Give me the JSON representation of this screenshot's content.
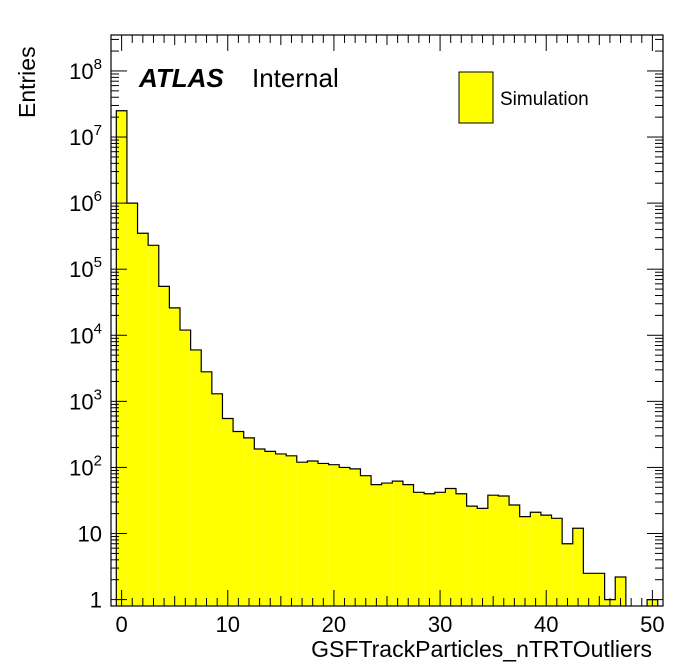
{
  "chart_data": {
    "type": "bar",
    "xlabel": "GSFTrackParticles_nTRTOutliers",
    "ylabel": "Entries",
    "xlim": [
      -1,
      51
    ],
    "ylim": [
      0.8,
      350000000.0
    ],
    "log_y": true,
    "grid": false,
    "fill_color": "#ffff00",
    "line_color": "#000000",
    "atlas_label": "ATLAS",
    "atlas_status": "Internal",
    "legend": {
      "placement": "top-right",
      "entries": [
        "Simulation"
      ]
    },
    "x_tick_labels": [
      "0",
      "10",
      "20",
      "30",
      "40",
      "50"
    ],
    "y_tick_labels": [
      {
        "value": 1,
        "base": "1",
        "exp": ""
      },
      {
        "value": 10,
        "base": "10",
        "exp": ""
      },
      {
        "value": 100,
        "base": "10",
        "exp": "2"
      },
      {
        "value": 1000,
        "base": "10",
        "exp": "3"
      },
      {
        "value": 10000,
        "base": "10",
        "exp": "4"
      },
      {
        "value": 100000,
        "base": "10",
        "exp": "5"
      },
      {
        "value": 1000000,
        "base": "10",
        "exp": "6"
      },
      {
        "value": 10000000,
        "base": "10",
        "exp": "7"
      },
      {
        "value": 100000000,
        "base": "10",
        "exp": "8"
      }
    ],
    "bin_edges": [
      -0.5,
      0.5,
      1.5,
      2.5,
      3.5,
      4.5,
      5.5,
      6.5,
      7.5,
      8.5,
      9.5,
      10.5,
      11.5,
      12.5,
      13.5,
      14.5,
      15.5,
      16.5,
      17.5,
      18.5,
      19.5,
      20.5,
      21.5,
      22.5,
      23.5,
      24.5,
      25.5,
      26.5,
      27.5,
      28.5,
      29.5,
      30.5,
      31.5,
      32.5,
      33.5,
      34.5,
      35.5,
      36.5,
      37.5,
      38.5,
      39.5,
      40.5,
      41.5,
      42.5,
      43.5,
      44.5,
      45.5,
      46.5,
      47.5,
      48.5,
      49.5,
      50.5
    ],
    "values": [
      25000000,
      1000000,
      350000,
      230000,
      55000,
      26000,
      12000,
      6000,
      2800,
      1300,
      550,
      350,
      280,
      190,
      175,
      160,
      150,
      120,
      125,
      115,
      110,
      100,
      95,
      75,
      55,
      58,
      62,
      55,
      42,
      40,
      42,
      48,
      40,
      26,
      24,
      38,
      37,
      27,
      18,
      21,
      19,
      17,
      7,
      12,
      2.5,
      2.5,
      1,
      2.2,
      0,
      0,
      1
    ]
  }
}
